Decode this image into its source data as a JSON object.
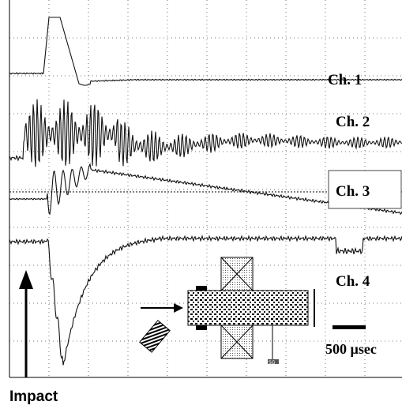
{
  "channels": [
    "Ch. 1",
    "Ch. 2",
    "Ch. 3",
    "Ch. 4"
  ],
  "scale_label": "500 µsec",
  "sensor_label": "SG",
  "caption": "Impact"
}
